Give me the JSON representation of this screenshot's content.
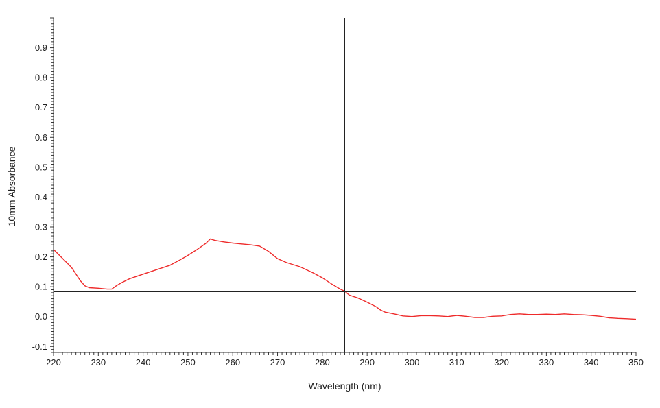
{
  "chart_data": {
    "type": "line",
    "title": "",
    "xlabel": "Wavelength (nm)",
    "ylabel": "10mm Absorbance",
    "xlim": [
      220,
      350
    ],
    "ylim": [
      -0.12,
      1.0
    ],
    "x_ticks": [
      220,
      230,
      240,
      250,
      260,
      270,
      280,
      290,
      300,
      310,
      320,
      330,
      340,
      350
    ],
    "x_tick_labels": [
      "220",
      "230",
      "240",
      "250",
      "260",
      "270",
      "280",
      "290",
      "300",
      "310",
      "320",
      "330",
      "340",
      "350"
    ],
    "y_ticks": [
      -0.1,
      0.0,
      0.1,
      0.2,
      0.3,
      0.4,
      0.5,
      0.6,
      0.7,
      0.8,
      0.9
    ],
    "y_tick_labels": [
      "-0.1",
      "0.0",
      "0.1",
      "0.2",
      "0.3",
      "0.4",
      "0.5",
      "0.6",
      "0.7",
      "0.8",
      "0.9"
    ],
    "grid": false,
    "legend": "none",
    "cursor": {
      "x": 285,
      "y": 0.083
    },
    "series": [
      {
        "color": "#ee2a2a",
        "x": [
          220,
          222,
          224,
          226,
          227,
          228,
          230,
          232,
          233,
          234,
          235,
          237,
          240,
          243,
          246,
          248,
          250,
          252,
          254,
          255,
          256,
          258,
          260,
          262,
          264,
          266,
          268,
          270,
          272,
          275,
          278,
          280,
          282,
          284,
          285,
          286,
          288,
          290,
          292,
          293,
          294,
          296,
          298,
          300,
          302,
          304,
          306,
          308,
          310,
          312,
          314,
          316,
          318,
          320,
          322,
          324,
          326,
          328,
          330,
          332,
          334,
          336,
          338,
          340,
          342,
          344,
          346,
          348,
          350
        ],
        "y": [
          0.225,
          0.195,
          0.165,
          0.12,
          0.103,
          0.097,
          0.095,
          0.092,
          0.092,
          0.103,
          0.112,
          0.127,
          0.142,
          0.157,
          0.172,
          0.188,
          0.205,
          0.224,
          0.245,
          0.26,
          0.255,
          0.25,
          0.246,
          0.243,
          0.24,
          0.236,
          0.218,
          0.194,
          0.181,
          0.167,
          0.146,
          0.13,
          0.11,
          0.092,
          0.085,
          0.072,
          0.062,
          0.048,
          0.033,
          0.022,
          0.015,
          0.009,
          0.002,
          0.0,
          0.003,
          0.003,
          0.002,
          0.0,
          0.004,
          0.001,
          -0.003,
          -0.003,
          0.001,
          0.002,
          0.007,
          0.009,
          0.007,
          0.007,
          0.008,
          0.007,
          0.009,
          0.007,
          0.006,
          0.004,
          0.001,
          -0.004,
          -0.006,
          -0.007,
          -0.009
        ]
      }
    ]
  }
}
